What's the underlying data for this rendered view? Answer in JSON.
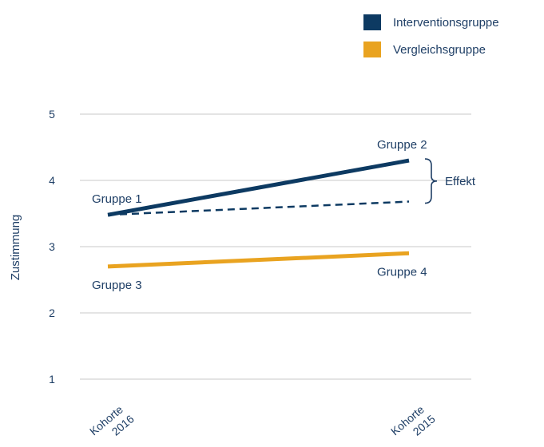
{
  "chart_data": {
    "type": "line",
    "title": "",
    "xlabel": "",
    "ylabel": "Zustimmung",
    "categories": [
      [
        "Kohorte",
        "2016"
      ],
      [
        "Kohorte",
        "2015"
      ]
    ],
    "yticks": [
      "1",
      "2",
      "3",
      "4",
      "5"
    ],
    "ylim": [
      1,
      5
    ],
    "grid": true,
    "legend_position": "top-right",
    "series": [
      {
        "name": "Interventionsgruppe",
        "values": [
          3.48,
          4.3
        ],
        "color": "#0d3a62",
        "style": "solid"
      },
      {
        "name": "",
        "values": [
          3.48,
          3.68
        ],
        "color": "#0d3a62",
        "style": "dashed"
      },
      {
        "name": "Vergleichsgruppe",
        "values": [
          2.7,
          2.9
        ],
        "color": "#e9a320",
        "style": "solid"
      }
    ],
    "point_labels": [
      {
        "text": "Gruppe 1",
        "category": 0,
        "value": 3.48,
        "placement": "above"
      },
      {
        "text": "Gruppe 2",
        "category": 1,
        "value": 4.3,
        "placement": "above"
      },
      {
        "text": "Gruppe 3",
        "category": 0,
        "value": 2.7,
        "placement": "below"
      },
      {
        "text": "Gruppe 4",
        "category": 1,
        "value": 2.9,
        "placement": "below"
      }
    ],
    "effect": {
      "label": "Effekt",
      "category": 1,
      "from": 3.68,
      "to": 4.3
    }
  },
  "legend": [
    {
      "label": "Interventionsgruppe",
      "color": "#0d3a62"
    },
    {
      "label": "Vergleichsgruppe",
      "color": "#e9a320"
    }
  ]
}
